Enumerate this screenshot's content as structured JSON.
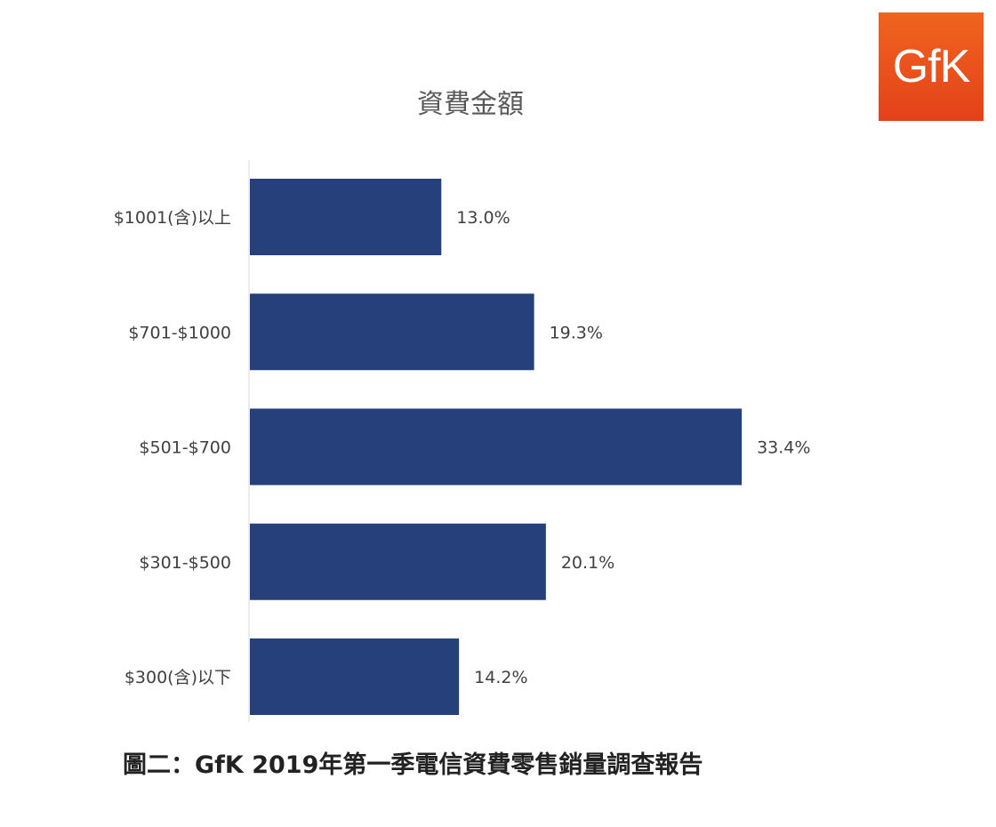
{
  "logo": {
    "text": "GfK"
  },
  "caption": "圖二：GfK 2019年第一季電信資費零售銷量調查報告",
  "colors": {
    "bar": "#26407c",
    "axis": "#d9d9d9",
    "logo": "#e9521c"
  },
  "chart_data": {
    "type": "bar",
    "orientation": "horizontal",
    "title": "資費金額",
    "xlabel": "",
    "ylabel": "",
    "categories": [
      "$1001(含)以上",
      "$701-$1000",
      "$501-$700",
      "$301-$500",
      "$300(含)以下"
    ],
    "values": [
      13.0,
      19.3,
      33.4,
      20.1,
      14.2
    ],
    "value_labels": [
      "13.0%",
      "19.3%",
      "33.4%",
      "20.1%",
      "14.2%"
    ],
    "xlim": [
      0,
      40
    ],
    "grid": false,
    "legend": "none"
  }
}
